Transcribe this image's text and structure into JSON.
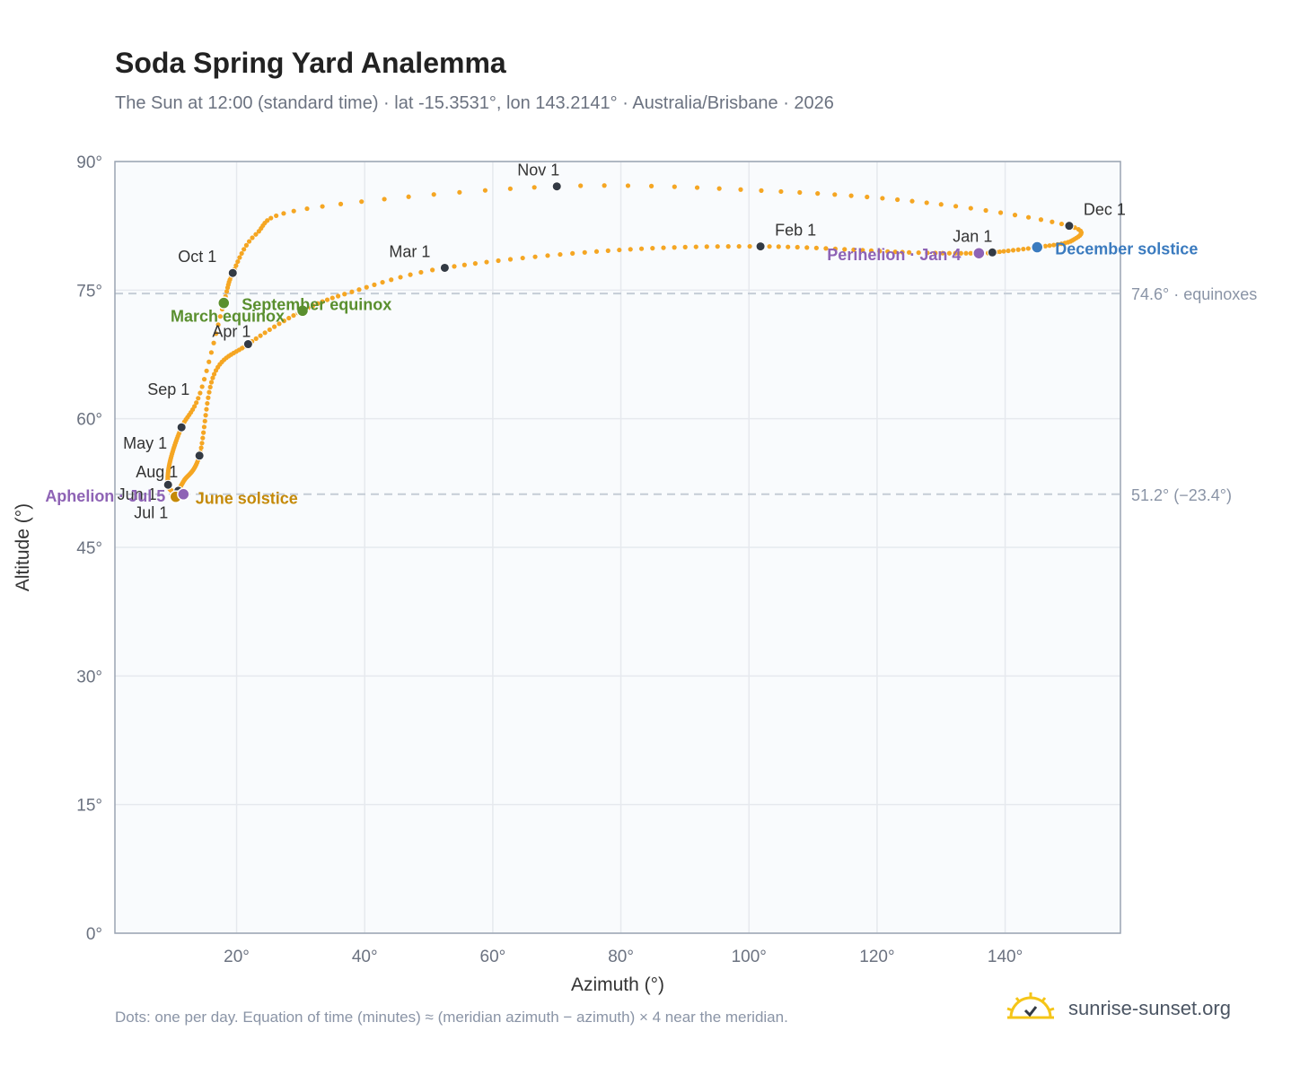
{
  "header": {
    "title": "Soda Spring Yard Analemma",
    "subtitle": "The Sun at 12:00 (standard time) · lat -15.3531°, lon 143.2141° · Australia/Brisbane · 2026"
  },
  "footer": {
    "note": "Dots: one per day. Equation of time (minutes) ≈ (meridian azimuth − azimuth) × 4 near the meridian.",
    "brand": "sunrise-sunset.org",
    "brand_icon": "sun-logo-icon"
  },
  "colors": {
    "curve": "#f5a623",
    "month_dot": "#333a44",
    "equinox": "#5a8f2e",
    "june_solstice": "#c58a09",
    "december_solstice": "#3b7bbf",
    "apsis": "#8e63b5",
    "grid": "#e6e9ee",
    "plot_bg": "#f9fbfd",
    "frame": "#9aa4b2",
    "ref_line": "#c5cdd6"
  },
  "chart_data": {
    "type": "scatter",
    "xlabel": "Azimuth (°)",
    "ylabel": "Altitude (°)",
    "xlim": [
      1,
      158
    ],
    "ylim": [
      0,
      90
    ],
    "x_ticks": [
      20,
      40,
      60,
      80,
      100,
      120,
      140
    ],
    "x_tick_labels": [
      "20°",
      "40°",
      "60°",
      "80°",
      "100°",
      "120°",
      "140°"
    ],
    "y_ticks": [
      0,
      15,
      30,
      45,
      60,
      75,
      90
    ],
    "y_tick_labels": [
      "0°",
      "15°",
      "30°",
      "45°",
      "60°",
      "75°",
      "90°"
    ],
    "grid": true,
    "analemma_keypoints": [
      {
        "day": 1,
        "x": 138.0,
        "y": 79.4
      },
      {
        "day": 4,
        "x": 135.9,
        "y": 79.3
      },
      {
        "day": 15,
        "x": 125.0,
        "y": 79.4
      },
      {
        "day": 32,
        "x": 101.8,
        "y": 80.1
      },
      {
        "day": 46,
        "x": 78.0,
        "y": 79.6
      },
      {
        "day": 60,
        "x": 52.5,
        "y": 77.6
      },
      {
        "day": 70,
        "x": 38.0,
        "y": 74.8
      },
      {
        "day": 79,
        "x": 30.3,
        "y": 72.6
      },
      {
        "day": 91,
        "x": 21.8,
        "y": 68.7
      },
      {
        "day": 105,
        "x": 16.5,
        "y": 65.2
      },
      {
        "day": 121,
        "x": 14.2,
        "y": 55.7
      },
      {
        "day": 140,
        "x": 11.8,
        "y": 52.8
      },
      {
        "day": 152,
        "x": 10.9,
        "y": 51.6
      },
      {
        "day": 172,
        "x": 10.5,
        "y": 50.9
      },
      {
        "day": 182,
        "x": 11.0,
        "y": 51.1
      },
      {
        "day": 186,
        "x": 11.7,
        "y": 51.2
      },
      {
        "day": 200,
        "x": 10.3,
        "y": 51.4
      },
      {
        "day": 213,
        "x": 9.3,
        "y": 52.3
      },
      {
        "day": 228,
        "x": 9.6,
        "y": 55.0
      },
      {
        "day": 244,
        "x": 11.4,
        "y": 59.0
      },
      {
        "day": 255,
        "x": 14.3,
        "y": 63.0
      },
      {
        "day": 266,
        "x": 18.0,
        "y": 73.5
      },
      {
        "day": 274,
        "x": 19.4,
        "y": 77.0
      },
      {
        "day": 284,
        "x": 23.0,
        "y": 81.5
      },
      {
        "day": 294,
        "x": 31.0,
        "y": 84.5
      },
      {
        "day": 305,
        "x": 70.0,
        "y": 87.1
      },
      {
        "day": 315,
        "x": 105.0,
        "y": 86.5
      },
      {
        "day": 325,
        "x": 130.0,
        "y": 85.0
      },
      {
        "day": 335,
        "x": 150.0,
        "y": 82.5
      },
      {
        "day": 345,
        "x": 150.5,
        "y": 80.8
      },
      {
        "day": 355,
        "x": 145.0,
        "y": 80.0
      },
      {
        "day": 365,
        "x": 138.2,
        "y": 79.4
      }
    ],
    "month_markers": [
      {
        "label": "Jan 1",
        "x": 138.0,
        "y": 79.4
      },
      {
        "label": "Feb 1",
        "x": 101.8,
        "y": 80.1
      },
      {
        "label": "Mar 1",
        "x": 52.5,
        "y": 77.6
      },
      {
        "label": "Apr 1",
        "x": 21.8,
        "y": 68.7
      },
      {
        "label": "May 1",
        "x": 14.2,
        "y": 55.7
      },
      {
        "label": "Jun 1",
        "x": 10.9,
        "y": 51.6
      },
      {
        "label": "Jul 1",
        "x": 11.0,
        "y": 51.1
      },
      {
        "label": "Aug 1",
        "x": 9.3,
        "y": 52.3
      },
      {
        "label": "Sep 1",
        "x": 11.4,
        "y": 59.0
      },
      {
        "label": "Oct 1",
        "x": 19.4,
        "y": 77.0
      },
      {
        "label": "Nov 1",
        "x": 70.0,
        "y": 87.1
      },
      {
        "label": "Dec 1",
        "x": 150.0,
        "y": 82.5
      }
    ],
    "events": [
      {
        "label": "March equinox",
        "x": 30.3,
        "y": 72.6,
        "color": "#5a8f2e"
      },
      {
        "label": "September equinox",
        "x": 18.0,
        "y": 73.5,
        "color": "#5a8f2e"
      },
      {
        "label": "June solstice",
        "x": 10.5,
        "y": 50.9,
        "color": "#c58a09"
      },
      {
        "label": "December solstice",
        "x": 145.0,
        "y": 80.0,
        "color": "#3b7bbf"
      },
      {
        "label": "Aphelion · Jul 5",
        "x": 11.7,
        "y": 51.2,
        "color": "#8e63b5"
      },
      {
        "label": "Perihelion · Jan 4",
        "x": 135.9,
        "y": 79.3,
        "color": "#8e63b5"
      }
    ],
    "reference_lines": [
      {
        "y": 74.6,
        "label": "74.6° · equinoxes"
      },
      {
        "y": 51.2,
        "label": "51.2° (−23.4°)"
      }
    ]
  }
}
